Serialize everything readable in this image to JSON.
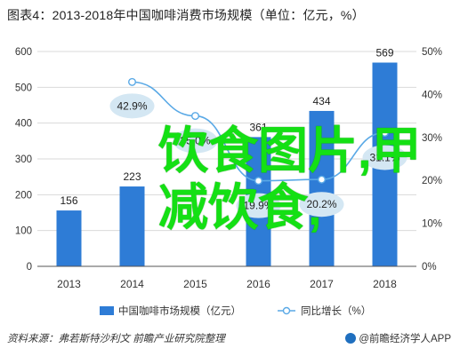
{
  "title": "图表4：2013-2018年中国咖啡消费市场规模（单位：亿元，%）",
  "source": "资料来源：弗若斯特沙利文 前瞻产业研究院整理",
  "credit": "@前瞻经济学人APP",
  "overlay_text": "饮食图片,甲减饮食,",
  "colors": {
    "bar": "#2e7cd6",
    "line": "#5aa9e6",
    "bubble": "#d4e7f3",
    "grid": "#d9d9d9",
    "axis": "#555555"
  },
  "chart_data": {
    "type": "bar",
    "categories": [
      "2013",
      "2014",
      "2015",
      "2016",
      "2017",
      "2018"
    ],
    "series": [
      {
        "name": "中国咖啡市场规模（亿元）",
        "type": "bar",
        "axis": "left",
        "values": [
          156,
          223,
          null,
          361,
          434,
          569
        ],
        "labels": [
          "156",
          "223",
          "",
          "361",
          "434",
          "569"
        ]
      },
      {
        "name": "同比增长（%）",
        "type": "line",
        "axis": "right",
        "values": [
          null,
          42.9,
          35.0,
          19.9,
          20.2,
          31.1
        ],
        "labels": [
          "",
          "42.9%",
          "35.0%",
          "19.9%",
          "20.2%",
          "31.1%"
        ]
      }
    ],
    "y_left": {
      "min": 0,
      "max": 600,
      "ticks": [
        0,
        100,
        200,
        300,
        400,
        500,
        600
      ]
    },
    "y_right": {
      "min": 0,
      "max": 50,
      "ticks": [
        "0%",
        "10%",
        "20%",
        "30%",
        "40%",
        "50%"
      ]
    },
    "grid": true,
    "legend": "bottom-center"
  }
}
